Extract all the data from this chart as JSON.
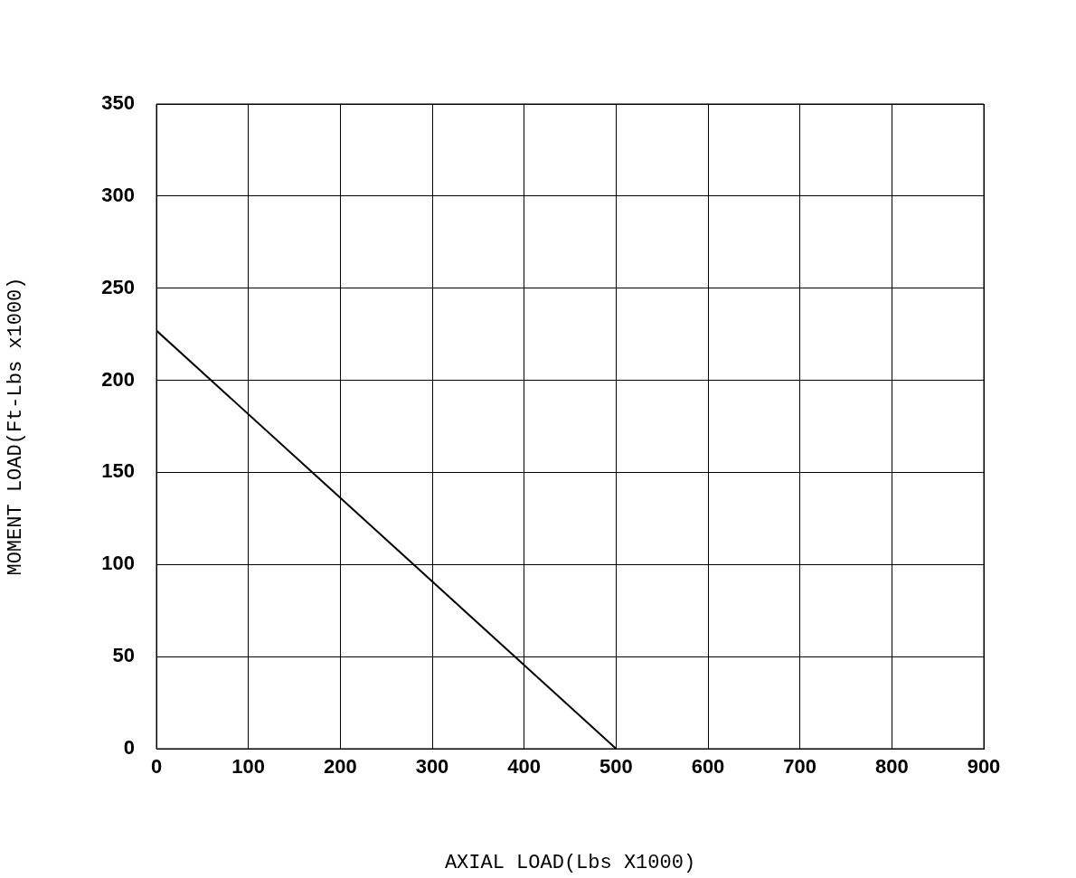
{
  "chart_data": {
    "type": "line",
    "xlabel": "AXIAL LOAD(Lbs X1000)",
    "ylabel": "MOMENT LOAD(Ft-Lbs x1000)",
    "series": [
      {
        "color": "#000000",
        "x": [
          0,
          500
        ],
        "values": [
          227,
          0
        ]
      }
    ],
    "xlim": [
      0,
      900
    ],
    "xticks": [
      0,
      100,
      200,
      300,
      400,
      500,
      600,
      700,
      800,
      900
    ],
    "ylim": [
      0,
      350
    ],
    "yticks": [
      0,
      50,
      100,
      150,
      200,
      250,
      300,
      350
    ],
    "grid": true,
    "legend": false,
    "marker": "none",
    "line_style": "solid"
  }
}
